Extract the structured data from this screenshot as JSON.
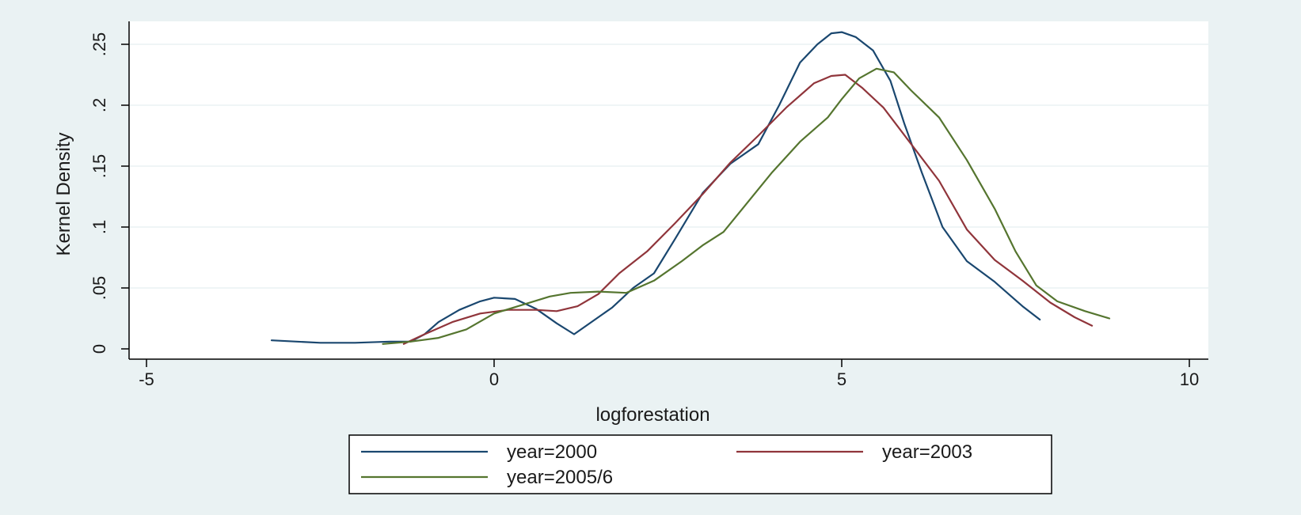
{
  "chart_data": {
    "type": "line",
    "xlabel": "logforestation",
    "ylabel": "Kernel Density",
    "xlim": [
      -5,
      10
    ],
    "ylim": [
      0,
      0.26
    ],
    "xticks": [
      -5,
      0,
      5,
      10
    ],
    "xtick_labels": [
      "-5",
      "0",
      "5",
      "10"
    ],
    "yticks": [
      0,
      0.05,
      0.1,
      0.15,
      0.2,
      0.25
    ],
    "ytick_labels": [
      "0",
      ".05",
      ".1",
      ".15",
      ".2",
      ".25"
    ],
    "grid": "horizontal",
    "legend_position": "bottom",
    "colors": {
      "outer_background": "#eaf2f3",
      "plot_background": "#ffffff",
      "gridline": "#eaf2f3",
      "axis": "#000000"
    },
    "series": [
      {
        "name": "year=2000",
        "color": "#1a476f",
        "points": [
          [
            -3.2,
            0.007
          ],
          [
            -2.5,
            0.005
          ],
          [
            -2.0,
            0.005
          ],
          [
            -1.5,
            0.006
          ],
          [
            -1.2,
            0.006
          ],
          [
            -1.0,
            0.012
          ],
          [
            -0.8,
            0.022
          ],
          [
            -0.5,
            0.032
          ],
          [
            -0.2,
            0.039
          ],
          [
            0.0,
            0.042
          ],
          [
            0.3,
            0.041
          ],
          [
            0.6,
            0.033
          ],
          [
            0.9,
            0.021
          ],
          [
            1.15,
            0.012
          ],
          [
            1.4,
            0.022
          ],
          [
            1.7,
            0.034
          ],
          [
            2.0,
            0.05
          ],
          [
            2.3,
            0.062
          ],
          [
            2.6,
            0.09
          ],
          [
            3.0,
            0.128
          ],
          [
            3.4,
            0.152
          ],
          [
            3.8,
            0.168
          ],
          [
            4.1,
            0.2
          ],
          [
            4.4,
            0.235
          ],
          [
            4.65,
            0.25
          ],
          [
            4.85,
            0.259
          ],
          [
            5.0,
            0.26
          ],
          [
            5.2,
            0.256
          ],
          [
            5.45,
            0.245
          ],
          [
            5.7,
            0.22
          ],
          [
            5.9,
            0.185
          ],
          [
            6.15,
            0.145
          ],
          [
            6.45,
            0.1
          ],
          [
            6.8,
            0.072
          ],
          [
            7.2,
            0.055
          ],
          [
            7.6,
            0.035
          ],
          [
            7.85,
            0.024
          ]
        ]
      },
      {
        "name": "year=2003",
        "color": "#90353b",
        "points": [
          [
            -1.3,
            0.004
          ],
          [
            -1.0,
            0.012
          ],
          [
            -0.6,
            0.022
          ],
          [
            -0.2,
            0.029
          ],
          [
            0.2,
            0.032
          ],
          [
            0.6,
            0.032
          ],
          [
            0.9,
            0.031
          ],
          [
            1.2,
            0.035
          ],
          [
            1.5,
            0.045
          ],
          [
            1.8,
            0.062
          ],
          [
            2.2,
            0.08
          ],
          [
            2.6,
            0.103
          ],
          [
            3.0,
            0.127
          ],
          [
            3.4,
            0.153
          ],
          [
            3.8,
            0.175
          ],
          [
            4.2,
            0.198
          ],
          [
            4.6,
            0.218
          ],
          [
            4.85,
            0.224
          ],
          [
            5.05,
            0.225
          ],
          [
            5.3,
            0.214
          ],
          [
            5.6,
            0.198
          ],
          [
            6.0,
            0.168
          ],
          [
            6.4,
            0.138
          ],
          [
            6.8,
            0.098
          ],
          [
            7.2,
            0.073
          ],
          [
            7.6,
            0.056
          ],
          [
            8.0,
            0.038
          ],
          [
            8.35,
            0.026
          ],
          [
            8.6,
            0.019
          ]
        ]
      },
      {
        "name": "year=2005/6",
        "color": "#55752f",
        "points": [
          [
            -1.6,
            0.004
          ],
          [
            -1.2,
            0.006
          ],
          [
            -0.8,
            0.009
          ],
          [
            -0.4,
            0.016
          ],
          [
            0.0,
            0.029
          ],
          [
            0.4,
            0.036
          ],
          [
            0.8,
            0.043
          ],
          [
            1.1,
            0.046
          ],
          [
            1.5,
            0.047
          ],
          [
            1.9,
            0.046
          ],
          [
            2.3,
            0.056
          ],
          [
            2.7,
            0.072
          ],
          [
            3.0,
            0.085
          ],
          [
            3.3,
            0.096
          ],
          [
            3.6,
            0.117
          ],
          [
            4.0,
            0.145
          ],
          [
            4.4,
            0.17
          ],
          [
            4.8,
            0.19
          ],
          [
            5.0,
            0.205
          ],
          [
            5.25,
            0.222
          ],
          [
            5.5,
            0.23
          ],
          [
            5.75,
            0.227
          ],
          [
            6.0,
            0.212
          ],
          [
            6.4,
            0.19
          ],
          [
            6.8,
            0.155
          ],
          [
            7.2,
            0.115
          ],
          [
            7.5,
            0.08
          ],
          [
            7.8,
            0.052
          ],
          [
            8.1,
            0.039
          ],
          [
            8.5,
            0.031
          ],
          [
            8.85,
            0.025
          ]
        ]
      }
    ]
  }
}
